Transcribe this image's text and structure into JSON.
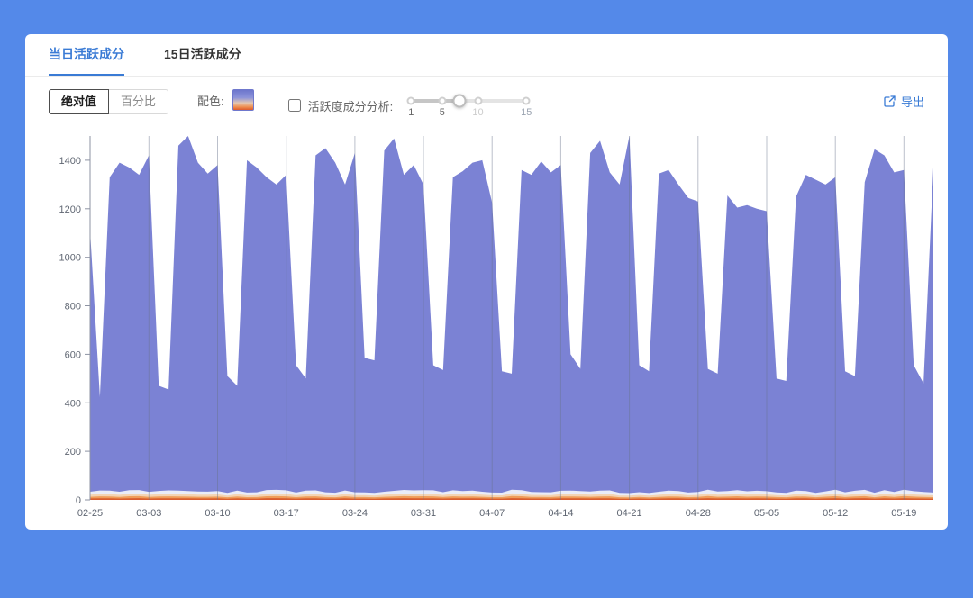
{
  "page": {
    "background": "#5489e9",
    "card_background": "#ffffff"
  },
  "tabs": [
    {
      "label": "当日活跃成分",
      "active": true
    },
    {
      "label": "15日活跃成分",
      "active": false
    }
  ],
  "toolbar": {
    "mode_buttons": [
      {
        "label": "绝对值",
        "selected": true
      },
      {
        "label": "百分比",
        "selected": false
      }
    ],
    "palette_label": "配色:",
    "palette_colors": [
      "#6d76cc",
      "#ee8c4d",
      "#dd5a2b"
    ],
    "checkbox_label": "活跃度成分分析:",
    "checkbox_checked": false,
    "slider": {
      "stops": [
        "1",
        "5",
        "10",
        "15"
      ],
      "handle_between": "5-10"
    },
    "export_label": "导出",
    "accent_color": "#3a7bd5"
  },
  "chart_data": {
    "type": "area",
    "title": "",
    "xlabel": "",
    "ylabel": "",
    "ylim": [
      0,
      1500
    ],
    "y_ticks": [
      0,
      200,
      400,
      600,
      800,
      1000,
      1200,
      1400
    ],
    "grid": "vertical",
    "legend": false,
    "ticks": [
      {
        "i": 0,
        "label": "02-25"
      },
      {
        "i": 6,
        "label": "03-03"
      },
      {
        "i": 13,
        "label": "03-10"
      },
      {
        "i": 20,
        "label": "03-17"
      },
      {
        "i": 27,
        "label": "03-24"
      },
      {
        "i": 34,
        "label": "03-31"
      },
      {
        "i": 41,
        "label": "04-07"
      },
      {
        "i": 48,
        "label": "04-14"
      },
      {
        "i": 55,
        "label": "04-21"
      },
      {
        "i": 62,
        "label": "04-28"
      },
      {
        "i": 69,
        "label": "05-05"
      },
      {
        "i": 76,
        "label": "05-12"
      },
      {
        "i": 83,
        "label": "05-19"
      }
    ],
    "series": [
      {
        "name": "main-active-component",
        "color": "#7b82d4",
        "values": [
          1110,
          425,
          1330,
          1390,
          1370,
          1340,
          1420,
          470,
          455,
          1460,
          1500,
          1390,
          1345,
          1380,
          510,
          470,
          1400,
          1370,
          1330,
          1300,
          1340,
          555,
          500,
          1420,
          1450,
          1390,
          1300,
          1430,
          585,
          575,
          1440,
          1490,
          1340,
          1380,
          1300,
          555,
          535,
          1330,
          1355,
          1390,
          1400,
          1225,
          530,
          520,
          1360,
          1340,
          1395,
          1350,
          1380,
          600,
          540,
          1430,
          1480,
          1350,
          1300,
          1505,
          555,
          530,
          1345,
          1360,
          1300,
          1245,
          1230,
          540,
          520,
          1255,
          1205,
          1215,
          1200,
          1190,
          500,
          490,
          1250,
          1340,
          1320,
          1300,
          1330,
          530,
          510,
          1310,
          1445,
          1420,
          1350,
          1360,
          555,
          480,
          1370
        ]
      }
    ],
    "base_layers": [
      {
        "name": "layer-1",
        "color": "#e9ecf8",
        "height": 35
      },
      {
        "name": "layer-2",
        "color": "#f3d4b4",
        "height": 22
      },
      {
        "name": "layer-3",
        "color": "#ef9d5a",
        "height": 13
      },
      {
        "name": "layer-4",
        "color": "#d95c2e",
        "height": 6
      }
    ]
  }
}
